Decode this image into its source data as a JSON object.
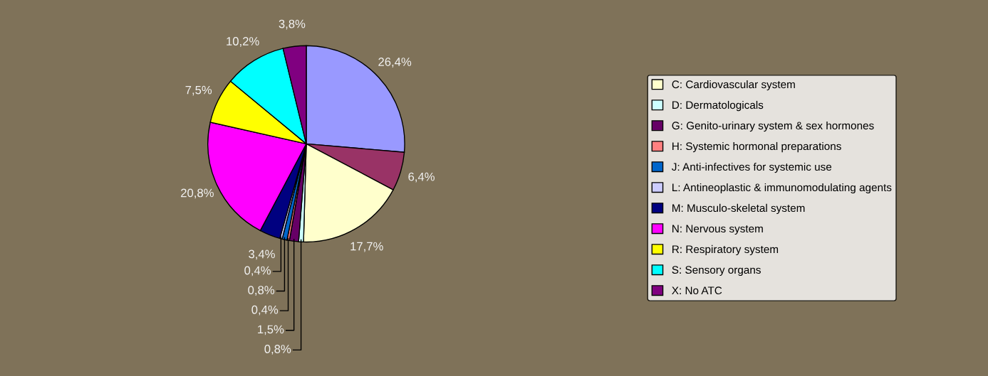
{
  "chart_data": {
    "type": "pie",
    "categories": [
      null,
      null,
      "C: Cardiovascular system",
      "D: Dermatologicals",
      "G: Genito-urinary system & sex hormones",
      "H: Systemic hormonal preparations",
      "J: Anti-infectives for systemic use",
      "L: Antineoplastic & immunomodulating agents",
      "M: Musculo-skeletal system",
      "N: Nervous system",
      "R: Respiratory system",
      "S: Sensory organs",
      "X: No ATC"
    ],
    "values": [
      26.4,
      6.4,
      17.7,
      0.8,
      1.5,
      0.4,
      0.8,
      0.4,
      3.4,
      20.8,
      7.5,
      10.2,
      3.8
    ],
    "value_labels": [
      "26,4%",
      "6,4%",
      "17,7%",
      "0,8%",
      "1,5%",
      "0,4%",
      "0,8%",
      "0,4%",
      "3,4%",
      "20,8%",
      "7,5%",
      "10,2%",
      "3,8%"
    ],
    "colors": [
      "#9999ff",
      "#993366",
      "#ffffcc",
      "#ccffff",
      "#660066",
      "#ff8080",
      "#0066cc",
      "#ccccff",
      "#000080",
      "#ff00ff",
      "#ffff00",
      "#00ffff",
      "#800080"
    ],
    "legend": "right"
  }
}
